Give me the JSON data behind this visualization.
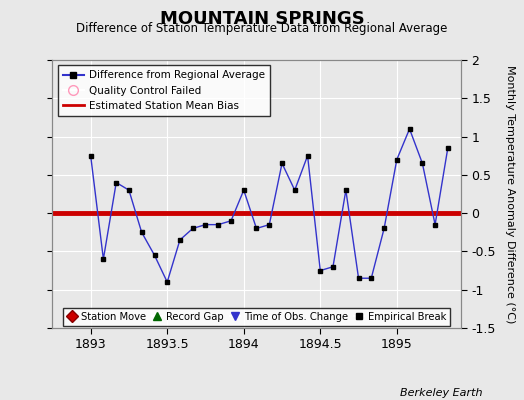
{
  "title": "MOUNTAIN SPRINGS",
  "subtitle": "Difference of Station Temperature Data from Regional Average",
  "ylabel_right": "Monthly Temperature Anomaly Difference (°C)",
  "credit": "Berkeley Earth",
  "xlim": [
    1892.75,
    1895.42
  ],
  "ylim": [
    -1.5,
    2.0
  ],
  "yticks": [
    -1.5,
    -1.0,
    -0.5,
    0.0,
    0.5,
    1.0,
    1.5,
    2.0
  ],
  "xticks": [
    1893,
    1893.5,
    1894,
    1894.5,
    1895
  ],
  "mean_bias": 0.0,
  "background_color": "#e8e8e8",
  "plot_bg_color": "#e8e8e8",
  "line_color": "#3333cc",
  "marker_color": "#000000",
  "bias_color": "#cc0000",
  "x": [
    1893.0,
    1893.083,
    1893.167,
    1893.25,
    1893.333,
    1893.417,
    1893.5,
    1893.583,
    1893.667,
    1893.75,
    1893.833,
    1893.917,
    1894.0,
    1894.083,
    1894.167,
    1894.25,
    1894.333,
    1894.417,
    1894.5,
    1894.583,
    1894.667,
    1894.75,
    1894.833,
    1894.917,
    1895.0,
    1895.083,
    1895.167,
    1895.25,
    1895.333
  ],
  "y": [
    0.75,
    -0.6,
    0.4,
    0.3,
    -0.25,
    -0.55,
    -0.9,
    -0.35,
    -0.2,
    -0.15,
    -0.15,
    -0.1,
    0.3,
    -0.2,
    -0.15,
    0.65,
    0.3,
    0.75,
    -0.75,
    -0.7,
    0.3,
    -0.85,
    -0.85,
    -0.2,
    0.7,
    1.1,
    0.65,
    -0.15,
    0.85
  ]
}
